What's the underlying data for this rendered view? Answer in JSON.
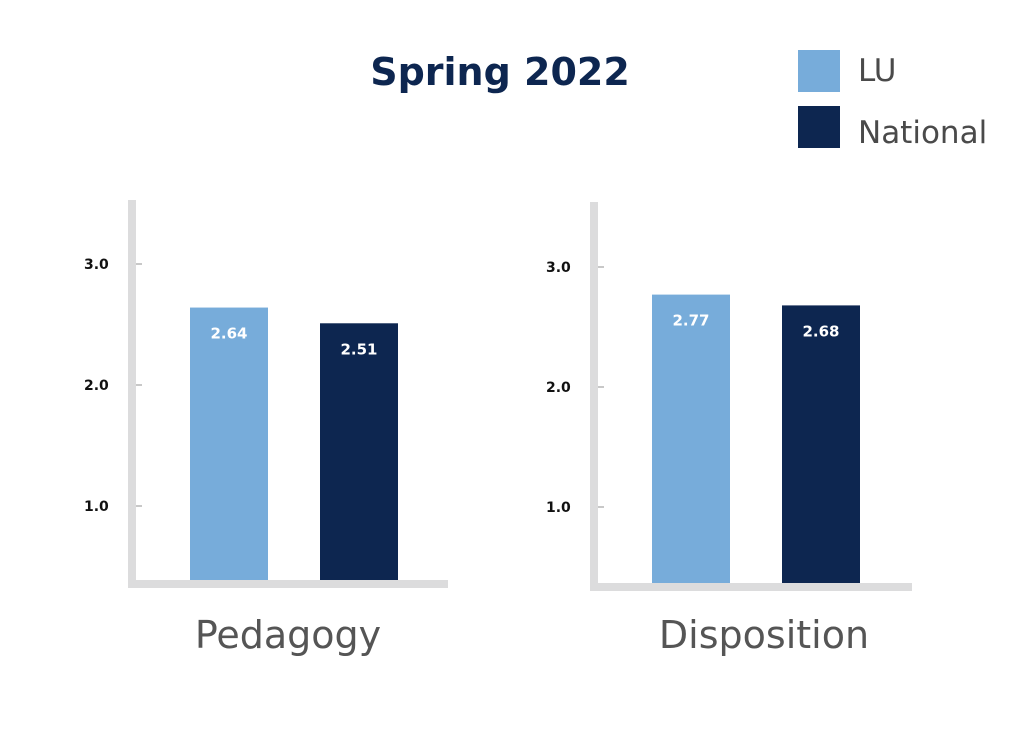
{
  "chart_title": "Spring 2022",
  "legend": [
    {
      "label": "LU",
      "color": "#77acda"
    },
    {
      "label": "National",
      "color": "#0d2650"
    }
  ],
  "chart_data": [
    {
      "type": "bar",
      "xlabel": "Pedagogy",
      "ylabel": "",
      "ylim": [
        0.4,
        3.5
      ],
      "yticks": [
        1.0,
        2.0,
        3.0
      ],
      "ytick_labels": [
        "1.0",
        "2.0",
        "3.0"
      ],
      "categories": [
        "LU",
        "National"
      ],
      "values": [
        2.64,
        2.51
      ],
      "data_labels": [
        "2.64",
        "2.51"
      ],
      "colors": [
        "#77acda",
        "#0d2650"
      ]
    },
    {
      "type": "bar",
      "xlabel": "Disposition",
      "ylabel": "",
      "ylim": [
        0.4,
        3.5
      ],
      "yticks": [
        1.0,
        2.0,
        3.0
      ],
      "ytick_labels": [
        "1.0",
        "2.0",
        "3.0"
      ],
      "categories": [
        "LU",
        "National"
      ],
      "values": [
        2.77,
        2.68
      ],
      "data_labels": [
        "2.77",
        "2.68"
      ],
      "colors": [
        "#77acda",
        "#0d2650"
      ]
    }
  ]
}
